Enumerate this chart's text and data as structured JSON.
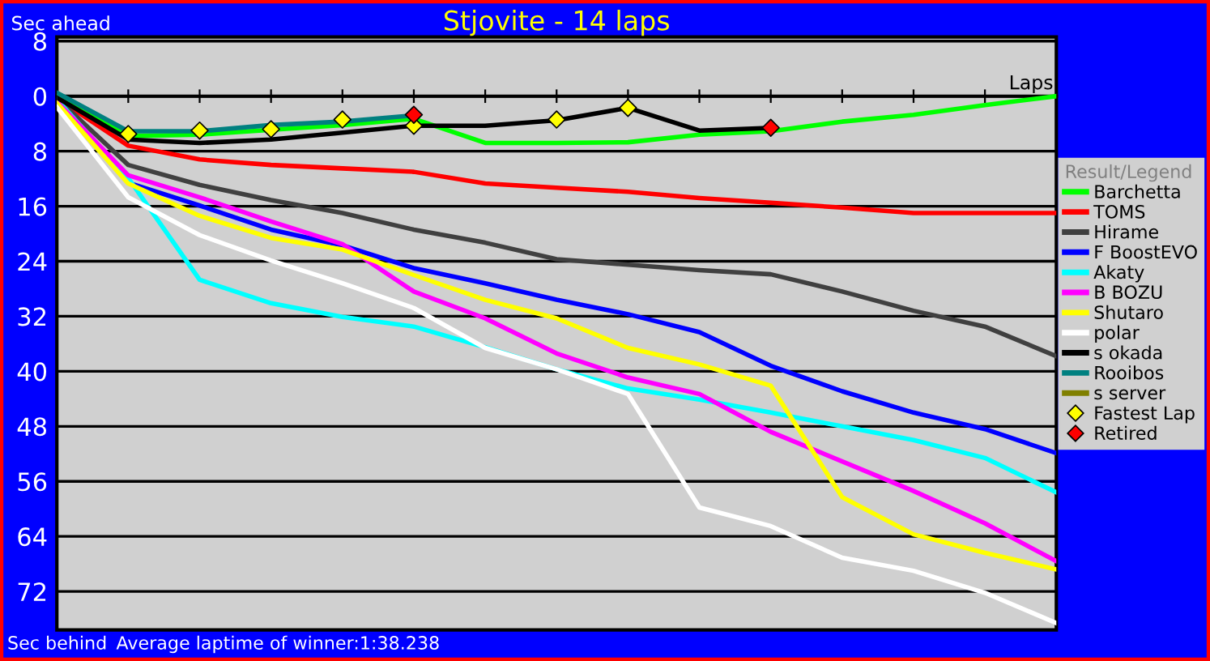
{
  "chart_data": {
    "type": "line",
    "title": "Stjovite - 14 laps",
    "ylabel": "Sec ahead",
    "xlabel": "Laps",
    "legend_title": "Result/Legend",
    "annotations": [
      "Sec behind",
      "Average laptime of winner:1:38.238"
    ],
    "categories": [
      null,
      null,
      null,
      null,
      null,
      null,
      null,
      null,
      null,
      null,
      null,
      null,
      null,
      null,
      null
    ],
    "ylim": [
      77.6,
      -8.6
    ],
    "yticks": [
      {
        "value": -8,
        "label": "8"
      },
      0,
      8,
      16,
      24,
      32,
      40,
      48,
      56,
      64,
      72
    ],
    "grid": "y",
    "legend": "right",
    "tick_labels": "y",
    "series": [
      {
        "name": "Barchetta",
        "color": "#00ff00",
        "values": [
          0,
          5.8,
          5.6,
          4.9,
          4.2,
          3.3,
          6.8,
          6.8,
          6.7,
          5.6,
          5.1,
          3.7,
          2.7,
          1.3,
          0
        ]
      },
      {
        "name": "TOMS",
        "color": "#ff0000",
        "values": [
          0.3,
          7.2,
          9.2,
          10.0,
          10.5,
          11.0,
          12.7,
          13.3,
          13.9,
          14.8,
          15.5,
          16.2,
          17.0,
          17.0,
          17.0
        ]
      },
      {
        "name": "Hirame",
        "color": "#404040",
        "values": [
          0.3,
          10.0,
          12.9,
          15.1,
          17.0,
          19.4,
          21.3,
          23.7,
          24.5,
          25.3,
          25.9,
          28.4,
          31.2,
          33.5,
          37.8
        ]
      },
      {
        "name": "F BoostEVO",
        "color": "#0000ff",
        "values": [
          0.5,
          12.6,
          15.9,
          19.4,
          21.7,
          25.0,
          27.2,
          29.6,
          31.7,
          34.3,
          39.2,
          42.9,
          46.0,
          48.4,
          51.9
        ]
      },
      {
        "name": "Akaty",
        "color": "#00ffff",
        "values": [
          0.5,
          11.9,
          26.7,
          30.1,
          32.1,
          33.5,
          36.5,
          39.7,
          42.5,
          44.1,
          46.0,
          48.0,
          50.0,
          52.6,
          57.6
        ]
      },
      {
        "name": "B BOZU",
        "color": "#ff00ff",
        "values": [
          0.8,
          11.5,
          14.7,
          18.2,
          21.5,
          28.4,
          32.3,
          37.4,
          40.9,
          43.3,
          48.8,
          53.1,
          57.4,
          62.1,
          67.6
        ]
      },
      {
        "name": "Shutaro",
        "color": "#ffff00",
        "values": [
          1.0,
          12.7,
          17.4,
          20.6,
          22.3,
          26.0,
          29.6,
          32.3,
          36.6,
          39.0,
          42.1,
          58.3,
          63.7,
          66.4,
          68.8
        ]
      },
      {
        "name": "polar",
        "color": "#ffffff",
        "values": [
          1.6,
          14.7,
          20.2,
          23.9,
          27.2,
          30.8,
          36.6,
          39.7,
          43.3,
          59.8,
          62.5,
          67.1,
          69.0,
          72.2,
          76.6
        ]
      },
      {
        "name": "s okada",
        "color": "#000000",
        "values": [
          0.2,
          6.3,
          6.8,
          6.3,
          5.3,
          4.3,
          4.3,
          3.5,
          1.7,
          5.0,
          4.6,
          null,
          null,
          null,
          null
        ]
      },
      {
        "name": "Rooibos",
        "color": "#008080",
        "values": [
          -0.5,
          5.1,
          5.1,
          4.2,
          3.7,
          2.8,
          null,
          null,
          null,
          null,
          null,
          null,
          null,
          null,
          null
        ]
      },
      {
        "name": "s server",
        "color": "#808000",
        "values": [
          null,
          null,
          null,
          null,
          null,
          null,
          null,
          null,
          null,
          null,
          null,
          null,
          null,
          null,
          null
        ]
      },
      {
        "name": "Fastest Lap",
        "type": "scatter",
        "marker": "diamond",
        "color": "#ffff00",
        "values": [
          null,
          5.5,
          5.0,
          4.8,
          3.4,
          4.3,
          null,
          3.4,
          1.7,
          null,
          null,
          null,
          null,
          null,
          null
        ]
      },
      {
        "name": "Retired",
        "type": "scatter",
        "marker": "diamond",
        "color": "#ff0000",
        "values": [
          null,
          null,
          null,
          null,
          null,
          2.7,
          null,
          null,
          null,
          null,
          4.6,
          null,
          null,
          null,
          null
        ]
      }
    ]
  }
}
